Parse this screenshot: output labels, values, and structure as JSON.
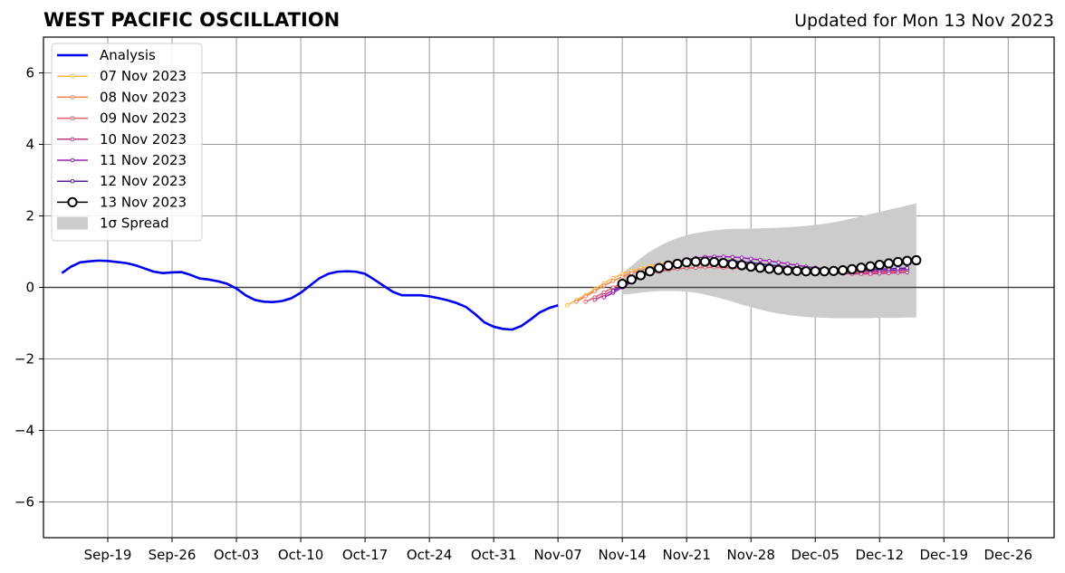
{
  "header": {
    "title": "WEST PACIFIC OSCILLATION",
    "updated": "Updated for Mon 13 Nov 2023"
  },
  "chart_data": {
    "type": "line",
    "title": "WEST PACIFIC OSCILLATION",
    "xlabel": "",
    "ylabel": "",
    "x_range": [
      "2023-09-12",
      "2023-12-31"
    ],
    "ylim": [
      -7,
      7
    ],
    "y_ticks": [
      -6,
      -4,
      -2,
      0,
      2,
      4,
      6
    ],
    "y_tick_labels": [
      "−6",
      "−4",
      "−2",
      "0",
      "2",
      "4",
      "6"
    ],
    "x_ticks": [
      "2023-09-19",
      "2023-09-26",
      "2023-10-03",
      "2023-10-10",
      "2023-10-17",
      "2023-10-24",
      "2023-10-31",
      "2023-11-07",
      "2023-11-14",
      "2023-11-21",
      "2023-11-28",
      "2023-12-05",
      "2023-12-12",
      "2023-12-19",
      "2023-12-26"
    ],
    "x_tick_labels": [
      "Sep-19",
      "Sep-26",
      "Oct-03",
      "Oct-10",
      "Oct-17",
      "Oct-24",
      "Oct-31",
      "Nov-07",
      "Nov-14",
      "Nov-21",
      "Nov-28",
      "Dec-05",
      "Dec-12",
      "Dec-19",
      "Dec-26"
    ],
    "grid": true,
    "legend_position": "top-left",
    "analysis": {
      "name": "Analysis",
      "color": "#0000ee",
      "start": "2023-09-14",
      "values": [
        0.4,
        0.58,
        0.7,
        0.73,
        0.75,
        0.74,
        0.71,
        0.68,
        0.62,
        0.53,
        0.44,
        0.4,
        0.42,
        0.43,
        0.35,
        0.25,
        0.22,
        0.17,
        0.1,
        -0.03,
        -0.22,
        -0.35,
        -0.4,
        -0.41,
        -0.38,
        -0.3,
        -0.15,
        0.05,
        0.25,
        0.38,
        0.44,
        0.45,
        0.44,
        0.38,
        0.22,
        0.05,
        -0.12,
        -0.22,
        -0.22,
        -0.22,
        -0.25,
        -0.3,
        -0.36,
        -0.44,
        -0.55,
        -0.75,
        -0.98,
        -1.1,
        -1.16,
        -1.18,
        -1.08,
        -0.9,
        -0.7,
        -0.58,
        -0.5
      ]
    },
    "forecasts": [
      {
        "name": "07 Nov 2023",
        "color": "#fdb73b",
        "start": "2023-11-08",
        "values": [
          -0.5,
          -0.35,
          -0.22,
          -0.05,
          0.12,
          0.26,
          0.38,
          0.46,
          0.54,
          0.6,
          0.65,
          0.7,
          0.72,
          0.73,
          0.72,
          0.7,
          0.68,
          0.66,
          0.64,
          0.62,
          0.6,
          0.58,
          0.56,
          0.54,
          0.52,
          0.5,
          0.48,
          0.47,
          0.46,
          0.45,
          0.44,
          0.44,
          0.44,
          0.45,
          0.46,
          0.47,
          0.48,
          0.5
        ]
      },
      {
        "name": "08 Nov 2023",
        "color": "#f07f4f",
        "start": "2023-11-09",
        "values": [
          -0.4,
          -0.25,
          -0.1,
          0.05,
          0.18,
          0.3,
          0.4,
          0.48,
          0.55,
          0.6,
          0.64,
          0.67,
          0.69,
          0.7,
          0.7,
          0.69,
          0.67,
          0.65,
          0.63,
          0.61,
          0.59,
          0.57,
          0.55,
          0.53,
          0.51,
          0.49,
          0.47,
          0.46,
          0.45,
          0.44,
          0.43,
          0.43,
          0.43,
          0.44,
          0.45,
          0.46,
          0.47
        ]
      },
      {
        "name": "09 Nov 2023",
        "color": "#e05c6b",
        "start": "2023-11-10",
        "values": [
          -0.4,
          -0.28,
          -0.14,
          0.0,
          0.12,
          0.22,
          0.31,
          0.38,
          0.44,
          0.49,
          0.52,
          0.54,
          0.55,
          0.56,
          0.56,
          0.55,
          0.54,
          0.53,
          0.52,
          0.51,
          0.5,
          0.49,
          0.48,
          0.47,
          0.46,
          0.45,
          0.44,
          0.43,
          0.42,
          0.42,
          0.41,
          0.41,
          0.41,
          0.41,
          0.42,
          0.42
        ]
      },
      {
        "name": "10 Nov 2023",
        "color": "#c0368c",
        "start": "2023-11-11",
        "values": [
          -0.35,
          -0.22,
          -0.08,
          0.06,
          0.18,
          0.3,
          0.4,
          0.49,
          0.56,
          0.62,
          0.66,
          0.69,
          0.7,
          0.7,
          0.69,
          0.67,
          0.65,
          0.62,
          0.6,
          0.57,
          0.54,
          0.51,
          0.48,
          0.46,
          0.44,
          0.42,
          0.4,
          0.39,
          0.38,
          0.38,
          0.38,
          0.39,
          0.4,
          0.41,
          0.42
        ]
      },
      {
        "name": "11 Nov 2023",
        "color": "#9a1fb5",
        "start": "2023-11-12",
        "values": [
          -0.28,
          -0.15,
          0.0,
          0.15,
          0.29,
          0.42,
          0.53,
          0.63,
          0.71,
          0.77,
          0.82,
          0.85,
          0.86,
          0.86,
          0.85,
          0.83,
          0.8,
          0.77,
          0.74,
          0.7,
          0.66,
          0.62,
          0.58,
          0.55,
          0.52,
          0.5,
          0.48,
          0.47,
          0.46,
          0.46,
          0.46,
          0.47,
          0.48,
          0.5
        ]
      },
      {
        "name": "12 Nov 2023",
        "color": "#5c17a6",
        "start": "2023-11-13",
        "values": [
          -0.1,
          0.05,
          0.2,
          0.34,
          0.46,
          0.56,
          0.64,
          0.7,
          0.74,
          0.76,
          0.77,
          0.77,
          0.76,
          0.74,
          0.72,
          0.69,
          0.66,
          0.63,
          0.6,
          0.57,
          0.54,
          0.52,
          0.5,
          0.49,
          0.48,
          0.48,
          0.48,
          0.49,
          0.5,
          0.51,
          0.52,
          0.53,
          0.54
        ]
      }
    ],
    "latest": {
      "name": "13 Nov 2023",
      "color": "#000000",
      "start": "2023-11-14",
      "values": [
        0.1,
        0.22,
        0.34,
        0.45,
        0.54,
        0.61,
        0.66,
        0.7,
        0.72,
        0.72,
        0.71,
        0.68,
        0.65,
        0.62,
        0.58,
        0.55,
        0.52,
        0.49,
        0.47,
        0.46,
        0.45,
        0.45,
        0.45,
        0.46,
        0.48,
        0.51,
        0.55,
        0.59,
        0.63,
        0.67,
        0.71,
        0.74,
        0.76
      ]
    },
    "spread": {
      "name": "1σ Spread",
      "color": "#cccccc",
      "start": "2023-11-14",
      "upper": [
        0.4,
        0.6,
        0.82,
        1.0,
        1.15,
        1.28,
        1.38,
        1.46,
        1.52,
        1.56,
        1.6,
        1.62,
        1.64,
        1.64,
        1.65,
        1.65,
        1.66,
        1.67,
        1.68,
        1.7,
        1.72,
        1.75,
        1.78,
        1.82,
        1.87,
        1.93,
        1.99,
        2.05,
        2.11,
        2.17,
        2.23,
        2.29,
        2.35
      ],
      "lower": [
        -0.2,
        -0.18,
        -0.15,
        -0.12,
        -0.1,
        -0.1,
        -0.1,
        -0.12,
        -0.15,
        -0.2,
        -0.26,
        -0.33,
        -0.4,
        -0.48,
        -0.55,
        -0.62,
        -0.68,
        -0.73,
        -0.77,
        -0.8,
        -0.83,
        -0.84,
        -0.85,
        -0.86,
        -0.86,
        -0.86,
        -0.86,
        -0.86,
        -0.85,
        -0.85,
        -0.85,
        -0.84,
        -0.84
      ]
    }
  }
}
